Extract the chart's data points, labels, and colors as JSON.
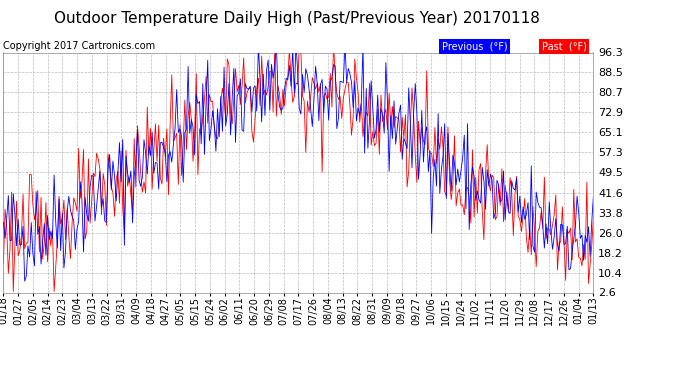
{
  "title": "Outdoor Temperature Daily High (Past/Previous Year) 20170118",
  "copyright": "Copyright 2017 Cartronics.com",
  "legend_labels": [
    "Previous  (°F)",
    "Past  (°F)"
  ],
  "line_color_previous": "blue",
  "line_color_past": "red",
  "yticks": [
    2.6,
    10.4,
    18.2,
    26.0,
    33.8,
    41.6,
    49.5,
    57.3,
    65.1,
    72.9,
    80.7,
    88.5,
    96.3
  ],
  "ylim": [
    2.6,
    96.3
  ],
  "background_color": "#ffffff",
  "title_fontsize": 11,
  "copyright_fontsize": 7,
  "tick_fontsize": 8,
  "n_days": 362,
  "day_start": 18,
  "x_labels": [
    "01/18",
    "01/27",
    "02/05",
    "02/14",
    "02/23",
    "03/04",
    "03/13",
    "03/22",
    "03/31",
    "04/09",
    "04/18",
    "04/27",
    "05/05",
    "05/15",
    "05/24",
    "06/02",
    "06/11",
    "06/20",
    "06/29",
    "07/08",
    "07/17",
    "07/26",
    "08/04",
    "08/13",
    "08/22",
    "08/31",
    "09/09",
    "09/18",
    "09/27",
    "10/06",
    "10/15",
    "10/24",
    "11/02",
    "11/11",
    "11/20",
    "11/29",
    "12/08",
    "12/17",
    "12/26",
    "01/04",
    "01/13"
  ]
}
